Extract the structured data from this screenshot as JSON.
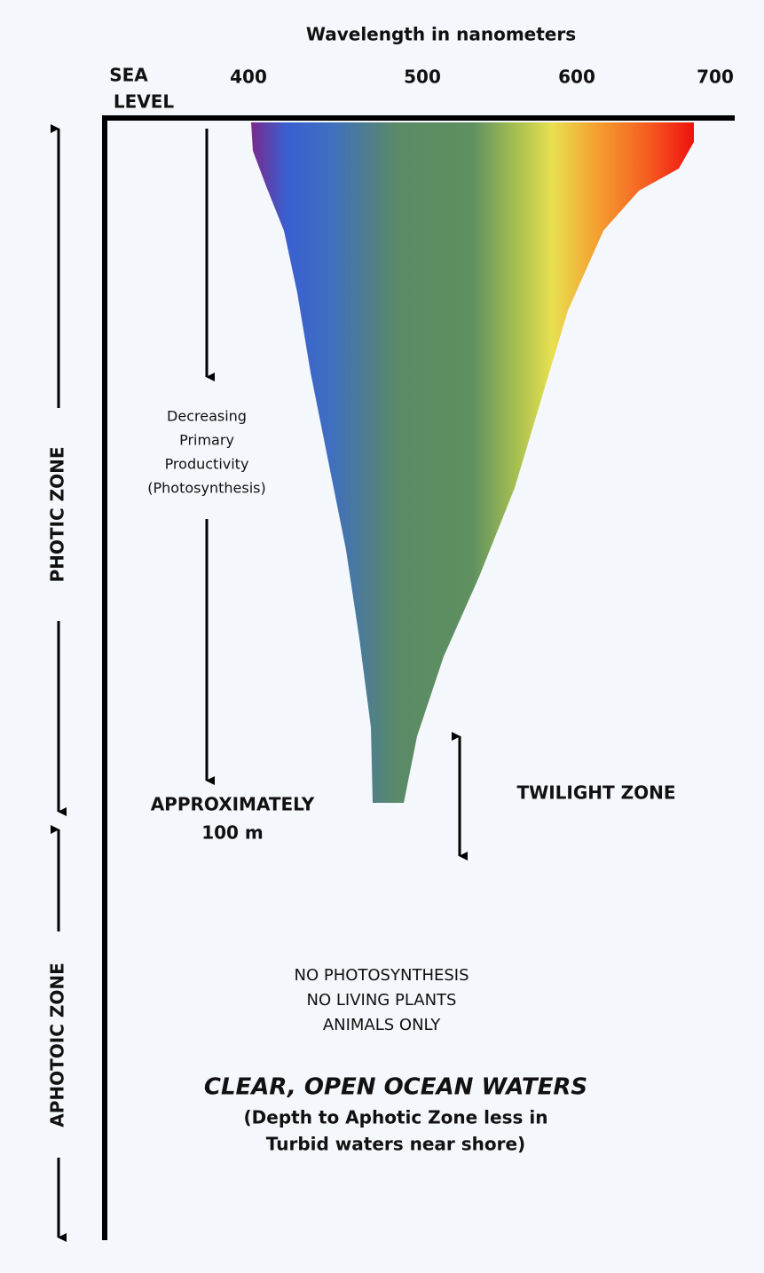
{
  "axis": {
    "title": "Wavelength in nanometers",
    "ticks": [
      400,
      500,
      600,
      700
    ]
  },
  "sea_level": [
    "SEA",
    "LEVEL"
  ],
  "productivity": [
    "Decreasing",
    "Primary",
    "Productivity",
    "(Photosynthesis)"
  ],
  "depth": [
    "APPROXIMATELY",
    "100 m"
  ],
  "twilight": "TWILIGHT ZONE",
  "zones": {
    "photic": "PHOTIC ZONE",
    "aphotic": "APHOTOIC ZONE"
  },
  "notes": [
    "NO PHOTOSYNTHESIS",
    "NO LIVING PLANTS",
    "ANIMALS ONLY"
  ],
  "title": "CLEAR, OPEN OCEAN WATERS",
  "subtitle": [
    "(Depth to Aphotic Zone less in",
    "Turbid waters near shore)"
  ]
}
